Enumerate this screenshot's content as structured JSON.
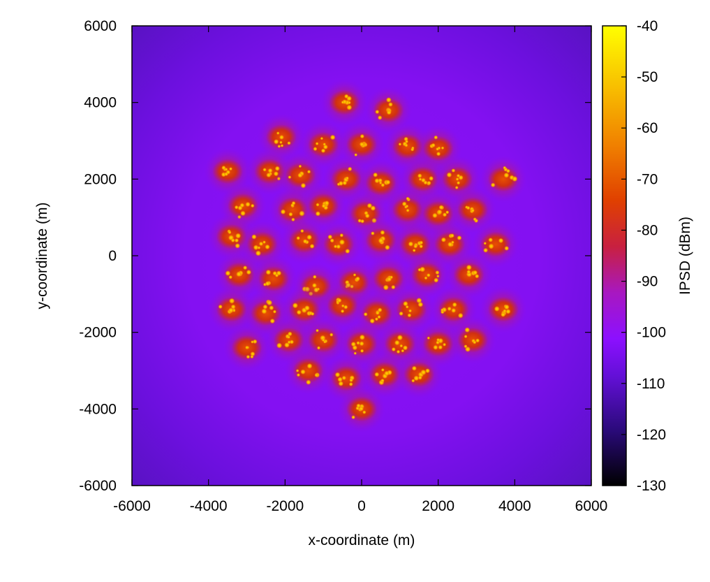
{
  "chart_data": {
    "type": "heatmap",
    "title": "",
    "xlabel": "x-coordinate (m)",
    "ylabel": "y-coordinate (m)",
    "colorbar_label": "IPSD (dBm)",
    "xlim": [
      -6000,
      6000
    ],
    "ylim": [
      -6000,
      6000
    ],
    "clim": [
      -130,
      -40
    ],
    "x_ticks": [
      -6000,
      -4000,
      -2000,
      0,
      2000,
      4000,
      6000
    ],
    "y_ticks": [
      -6000,
      -4000,
      -2000,
      0,
      2000,
      4000,
      6000
    ],
    "colorbar_ticks": [
      -130,
      -120,
      -110,
      -100,
      -90,
      -80,
      -70,
      -60,
      -50,
      -40
    ],
    "background_level_dbm": -110,
    "colormap": [
      "#000000",
      "#2a0a7a",
      "#6410d8",
      "#8c10ff",
      "#c02080",
      "#e04000",
      "#f08000",
      "#f8c000",
      "#ffff00"
    ],
    "hotspot_clusters": [
      {
        "x": -450,
        "y": 4000
      },
      {
        "x": 700,
        "y": 3800
      },
      {
        "x": -2100,
        "y": 3100
      },
      {
        "x": -1000,
        "y": 2900
      },
      {
        "x": 0,
        "y": 2900
      },
      {
        "x": 1200,
        "y": 2850
      },
      {
        "x": 2000,
        "y": 2800
      },
      {
        "x": -3500,
        "y": 2200
      },
      {
        "x": -2400,
        "y": 2200
      },
      {
        "x": -1600,
        "y": 2100
      },
      {
        "x": -400,
        "y": 2000
      },
      {
        "x": 500,
        "y": 1900
      },
      {
        "x": 1600,
        "y": 2000
      },
      {
        "x": 2500,
        "y": 2000
      },
      {
        "x": 3700,
        "y": 2000
      },
      {
        "x": -3100,
        "y": 1300
      },
      {
        "x": -1800,
        "y": 1200
      },
      {
        "x": -1000,
        "y": 1300
      },
      {
        "x": 100,
        "y": 1100
      },
      {
        "x": 1200,
        "y": 1200
      },
      {
        "x": 2000,
        "y": 1100
      },
      {
        "x": 2900,
        "y": 1200
      },
      {
        "x": -3400,
        "y": 500
      },
      {
        "x": -2600,
        "y": 300
      },
      {
        "x": -1500,
        "y": 400
      },
      {
        "x": -600,
        "y": 300
      },
      {
        "x": 500,
        "y": 400
      },
      {
        "x": 1400,
        "y": 300
      },
      {
        "x": 2300,
        "y": 300
      },
      {
        "x": 3500,
        "y": 300
      },
      {
        "x": -3200,
        "y": -500
      },
      {
        "x": -2300,
        "y": -600
      },
      {
        "x": -1200,
        "y": -800
      },
      {
        "x": -200,
        "y": -700
      },
      {
        "x": 700,
        "y": -600
      },
      {
        "x": 1700,
        "y": -500
      },
      {
        "x": 2800,
        "y": -500
      },
      {
        "x": -3400,
        "y": -1400
      },
      {
        "x": -2500,
        "y": -1500
      },
      {
        "x": -1500,
        "y": -1400
      },
      {
        "x": -500,
        "y": -1300
      },
      {
        "x": 400,
        "y": -1500
      },
      {
        "x": 1300,
        "y": -1400
      },
      {
        "x": 2400,
        "y": -1400
      },
      {
        "x": 3700,
        "y": -1400
      },
      {
        "x": -3000,
        "y": -2400
      },
      {
        "x": -1900,
        "y": -2200
      },
      {
        "x": -1000,
        "y": -2200
      },
      {
        "x": 0,
        "y": -2300
      },
      {
        "x": 1000,
        "y": -2300
      },
      {
        "x": 2000,
        "y": -2300
      },
      {
        "x": 2900,
        "y": -2200
      },
      {
        "x": -1400,
        "y": -3000
      },
      {
        "x": -400,
        "y": -3200
      },
      {
        "x": 600,
        "y": -3100
      },
      {
        "x": 1500,
        "y": -3100
      },
      {
        "x": 0,
        "y": -4000
      }
    ]
  }
}
